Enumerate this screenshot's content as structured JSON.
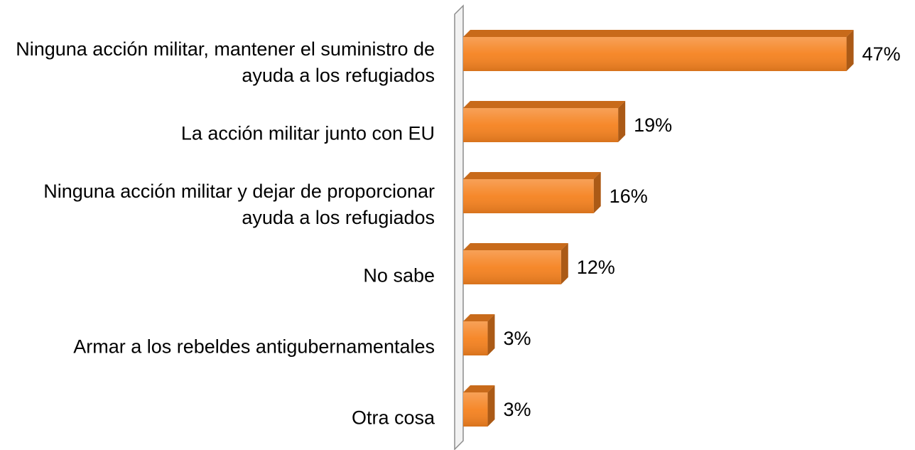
{
  "chart_data": {
    "type": "bar",
    "orientation": "horizontal",
    "categories": [
      "Ninguna acción militar, mantener el suministro de ayuda a los refugiados",
      "La acción militar junto con EU",
      "Ninguna acción militar y dejar de proporcionar ayuda a los refugiados",
      "No sabe",
      "Armar a los rebeldes antigubernamentales",
      "Otra cosa"
    ],
    "values": [
      47,
      19,
      16,
      12,
      3,
      3
    ],
    "value_labels": [
      "47%",
      "19%",
      "16%",
      "12%",
      "3%",
      "3%"
    ],
    "color": "#f58220",
    "xlim": [
      0,
      50
    ]
  }
}
